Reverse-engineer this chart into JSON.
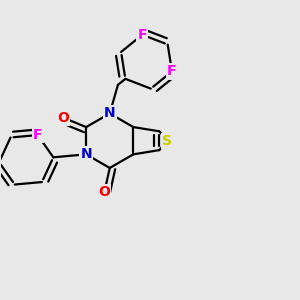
{
  "bg_color": "#e8e8e8",
  "atom_colors": {
    "C": "#000000",
    "N": "#0000cc",
    "O": "#ff0000",
    "S": "#cccc00",
    "F": "#ff00ff"
  },
  "bond_color": "#000000",
  "line_width": 1.6,
  "font_size_atom": 10
}
